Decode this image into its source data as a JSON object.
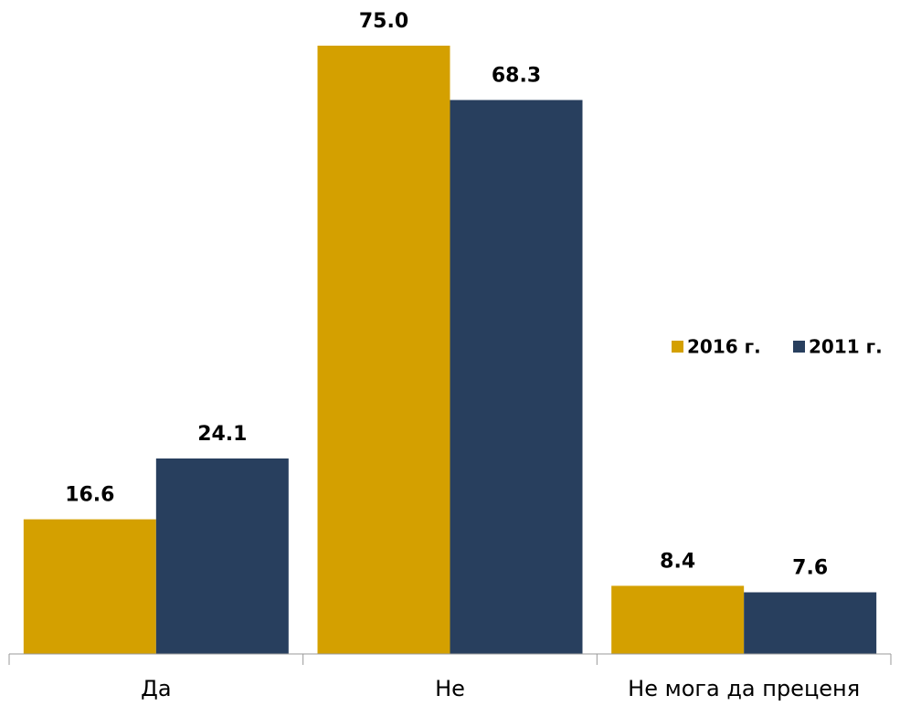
{
  "chart_data": {
    "type": "bar",
    "categories": [
      "Да",
      "Не",
      "Не мога да преценя"
    ],
    "series": [
      {
        "name": "2016 г.",
        "color": "#D4A000",
        "values": [
          16.6,
          75.0,
          8.4
        ],
        "value_labels": [
          "16.6",
          "75.0",
          "8.4"
        ]
      },
      {
        "name": "2011 г.",
        "color": "#283F5E",
        "values": [
          24.1,
          68.3,
          7.6
        ],
        "value_labels": [
          "24.1",
          "68.3",
          "7.6"
        ]
      }
    ],
    "legend": "right"
  }
}
